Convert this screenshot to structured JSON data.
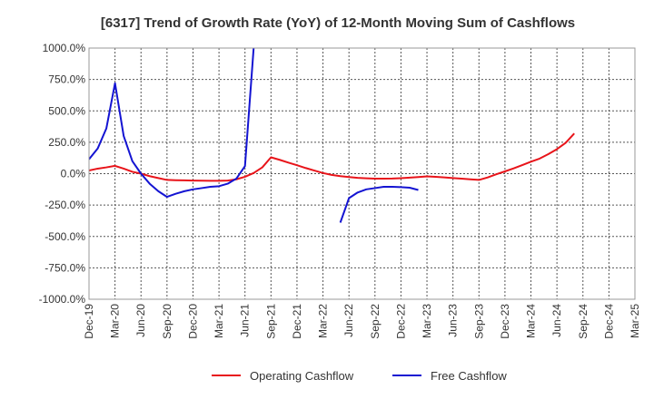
{
  "chart_data": {
    "type": "line",
    "title": "[6317]  Trend of Growth Rate (YoY) of 12-Month Moving Sum of Cashflows",
    "xlabel": "",
    "ylabel": "",
    "ylim": [
      -1000,
      1000
    ],
    "yticks": [
      1000,
      750,
      500,
      250,
      0,
      -250,
      -500,
      -750,
      -1000
    ],
    "ytick_labels": [
      "1000.0%",
      "750.0%",
      "500.0%",
      "250.0%",
      "0.0%",
      "-250.0%",
      "-500.0%",
      "-750.0%",
      "-1000.0%"
    ],
    "x_categories": [
      "Dec-19",
      "Jan-20",
      "Feb-20",
      "Mar-20",
      "Apr-20",
      "May-20",
      "Jun-20",
      "Jul-20",
      "Aug-20",
      "Sep-20",
      "Oct-20",
      "Nov-20",
      "Dec-20",
      "Jan-21",
      "Feb-21",
      "Mar-21",
      "Apr-21",
      "May-21",
      "Jun-21",
      "Jul-21",
      "Aug-21",
      "Sep-21",
      "Oct-21",
      "Nov-21",
      "Dec-21",
      "Jan-22",
      "Feb-22",
      "Mar-22",
      "Apr-22",
      "May-22",
      "Jun-22",
      "Jul-22",
      "Aug-22",
      "Sep-22",
      "Oct-22",
      "Nov-22",
      "Dec-22",
      "Jan-23",
      "Feb-23",
      "Mar-23",
      "Apr-23",
      "May-23",
      "Jun-23",
      "Jul-23",
      "Aug-23",
      "Sep-23",
      "Oct-23",
      "Nov-23",
      "Dec-23",
      "Jan-24",
      "Feb-24",
      "Mar-24",
      "Apr-24",
      "May-24",
      "Jun-24",
      "Jul-24",
      "Aug-24",
      "Sep-24",
      "Oct-24",
      "Nov-24",
      "Dec-24",
      "Jan-25",
      "Feb-25",
      "Mar-25"
    ],
    "xtick_labels": [
      "Dec-19",
      "Mar-20",
      "Jun-20",
      "Sep-20",
      "Dec-20",
      "Mar-21",
      "Jun-21",
      "Sep-21",
      "Dec-21",
      "Mar-22",
      "Jun-22",
      "Sep-22",
      "Dec-22",
      "Mar-23",
      "Jun-23",
      "Sep-23",
      "Dec-23",
      "Mar-24",
      "Jun-24",
      "Sep-24",
      "Dec-24",
      "Mar-25"
    ],
    "grid": true,
    "legend_position": "bottom",
    "series": [
      {
        "name": "Operating Cashflow",
        "color": "#e8141a",
        "values": [
          25,
          40,
          50,
          62,
          40,
          15,
          0,
          -20,
          -35,
          -50,
          -52,
          -53,
          -55,
          -56,
          -57,
          -57,
          -55,
          -45,
          -25,
          5,
          50,
          130,
          110,
          88,
          67,
          45,
          25,
          5,
          -10,
          -20,
          -27,
          -33,
          -37,
          -40,
          -40,
          -39,
          -36,
          -32,
          -27,
          -22,
          -25,
          -30,
          -35,
          -40,
          -45,
          -50,
          -30,
          -5,
          18,
          42,
          68,
          95,
          120,
          155,
          195,
          245,
          320,
          null,
          null,
          null,
          null,
          null,
          null,
          null
        ]
      },
      {
        "name": "Free Cashflow",
        "color": "#1414d2",
        "values": [
          115,
          200,
          360,
          720,
          300,
          100,
          0,
          -80,
          -140,
          -185,
          -160,
          -140,
          -125,
          -115,
          -105,
          -100,
          -80,
          -40,
          60,
          1000,
          null,
          null,
          null,
          null,
          null,
          null,
          null,
          null,
          null,
          -390,
          -195,
          -150,
          -125,
          -115,
          -105,
          -105,
          -107,
          -112,
          -130,
          null,
          null,
          null,
          null,
          null,
          null,
          null,
          null,
          null,
          null,
          null,
          null,
          null,
          null,
          null,
          null,
          null,
          null,
          null,
          null,
          null,
          null,
          null,
          null,
          null
        ]
      }
    ]
  }
}
